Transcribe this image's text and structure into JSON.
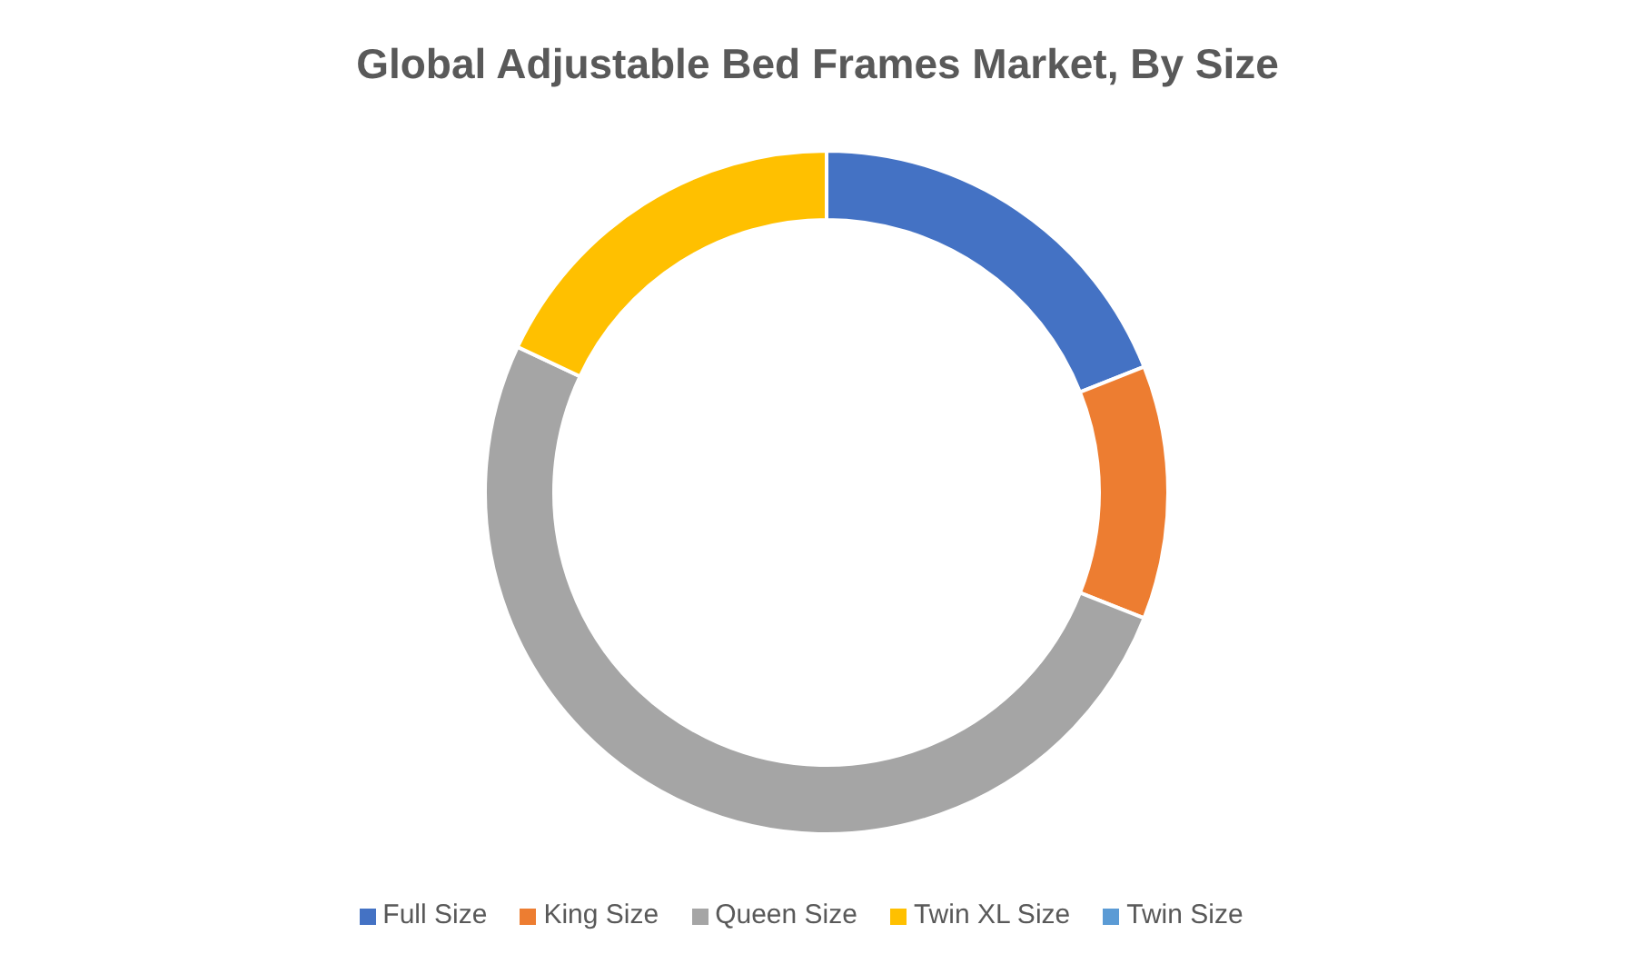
{
  "chart_data": {
    "type": "donut",
    "title": "Global Adjustable Bed Frames Market, By Size",
    "categories": [
      "Full Size",
      "King Size",
      "Queen Size",
      "Twin XL Size",
      "Twin Size"
    ],
    "values": [
      19,
      12,
      51,
      18,
      0
    ],
    "colors": [
      "#4472c4",
      "#ed7d31",
      "#a5a5a5",
      "#ffc000",
      "#5b9bd5"
    ],
    "legend": "bottom"
  }
}
